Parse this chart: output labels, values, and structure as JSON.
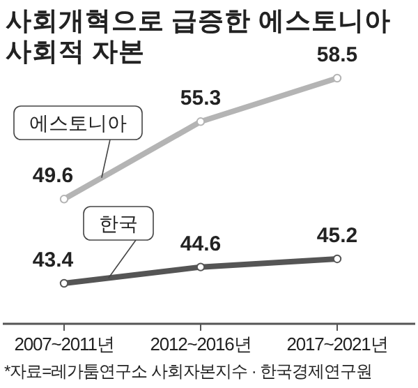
{
  "chart_data": {
    "type": "line",
    "title": "사회개혁으로 급증한 에스토니아 사회적 자본",
    "categories": [
      "2007~2011년",
      "2012~2016년",
      "2017~2021년"
    ],
    "series": [
      {
        "name": "에스토니아",
        "color": "#b4b4b4",
        "values": [
          49.6,
          55.3,
          58.5
        ]
      },
      {
        "name": "한국",
        "color": "#555555",
        "values": [
          43.4,
          44.6,
          45.2
        ]
      }
    ],
    "data_labels": true,
    "marker": "circle",
    "annotations": [
      "*자료=레가툼연구소 사회자본지수 · 한국경제연구원"
    ]
  }
}
